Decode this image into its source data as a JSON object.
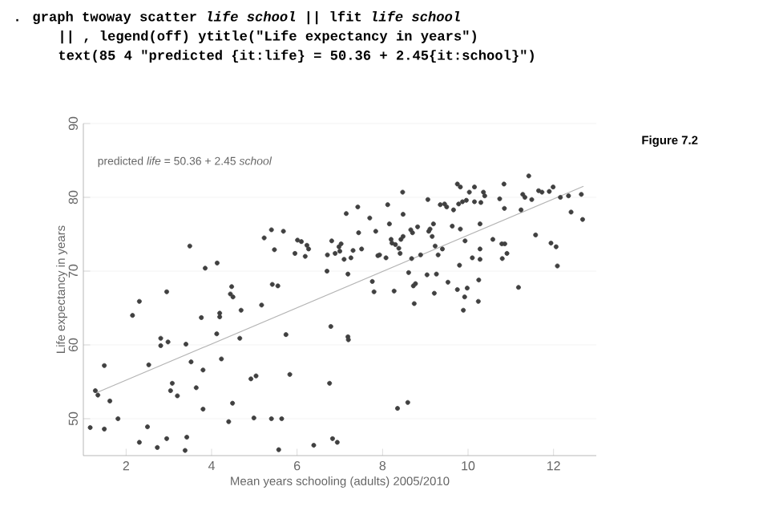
{
  "chart_data": {
    "type": "scatter",
    "xlabel": "Mean years schooling (adults) 2005/2010",
    "ylabel": "Life expectancy in years",
    "xlim": [
      1,
      13
    ],
    "xticks": [
      2,
      4,
      6,
      8,
      10,
      12
    ],
    "ylim": [
      45,
      90
    ],
    "yticks": [
      50,
      60,
      70,
      80,
      90
    ],
    "grid": "y",
    "marker": "circle",
    "annotations": [
      ". graph twoway scatter *life school* || lfit *life school*",
      "|| , legend(off) ytitle(\"Life expectancy in years\")",
      "text(85 4 \"predicted {it:life} = 50.36 + 2.45{it:school}\")",
      "predicted *life* = 50.36 + 2.45 *school*",
      "Figure 7.2"
    ],
    "series": [
      {
        "color": "#404040",
        "x": [
          1.16,
          1.28,
          1.34,
          1.49,
          1.49,
          1.62,
          1.81,
          2.15,
          2.31,
          2.31,
          2.5,
          2.53,
          2.73,
          2.81,
          2.81,
          2.95,
          2.95,
          2.98,
          3.04,
          3.08,
          3.2,
          3.38,
          3.4,
          3.42,
          3.49,
          3.52,
          3.64,
          3.76,
          3.8,
          3.8,
          3.85,
          4.12,
          4.13,
          4.19,
          4.19,
          4.23,
          4.4,
          4.44,
          4.47,
          4.49,
          4.5,
          4.66,
          4.69,
          4.92,
          4.99,
          5.04,
          5.17,
          5.23,
          5.4,
          5.4,
          5.42,
          5.47,
          5.55,
          5.57,
          5.64,
          5.68,
          5.74,
          5.83,
          5.95,
          6.01,
          6.1,
          6.19,
          6.23,
          6.27,
          6.39,
          6.7,
          6.71,
          6.76,
          6.79,
          6.81,
          6.83,
          6.89,
          6.94,
          6.98,
          7.0,
          7.03,
          7.1,
          7.15,
          7.19,
          7.19,
          7.2,
          7.26,
          7.31,
          7.42,
          7.44,
          7.51,
          7.7,
          7.76,
          7.8,
          7.84,
          7.89,
          7.93,
          8.08,
          8.12,
          8.16,
          8.2,
          8.22,
          8.27,
          8.3,
          8.35,
          8.38,
          8.41,
          8.43,
          8.47,
          8.48,
          8.48,
          8.59,
          8.61,
          8.66,
          8.68,
          8.7,
          8.72,
          8.74,
          8.77,
          8.82,
          8.89,
          9.04,
          9.06,
          9.08,
          9.11,
          9.16,
          9.19,
          9.21,
          9.23,
          9.26,
          9.3,
          9.35,
          9.4,
          9.45,
          9.5,
          9.53,
          9.63,
          9.66,
          9.75,
          9.75,
          9.78,
          9.8,
          9.82,
          9.82,
          9.87,
          9.89,
          9.92,
          9.93,
          9.96,
          9.98,
          10.03,
          10.1,
          10.15,
          10.15,
          10.24,
          10.25,
          10.28,
          10.28,
          10.28,
          10.3,
          10.36,
          10.39,
          10.58,
          10.74,
          10.79,
          10.8,
          10.84,
          10.85,
          10.86,
          10.91,
          11.18,
          11.24,
          11.28,
          11.33,
          11.42,
          11.49,
          11.58,
          11.65,
          11.73,
          11.9,
          11.94,
          11.99,
          12.06,
          12.09,
          12.16,
          12.35,
          12.41,
          12.65,
          12.68
        ],
        "values": [
          48.8,
          53.8,
          53.2,
          57.2,
          48.6,
          52.4,
          50.0,
          64.0,
          65.9,
          46.8,
          48.9,
          57.3,
          46.1,
          60.9,
          59.9,
          67.2,
          47.3,
          60.4,
          53.8,
          54.8,
          53.1,
          45.7,
          60.1,
          47.5,
          73.4,
          57.7,
          54.2,
          63.7,
          56.6,
          51.3,
          70.4,
          61.5,
          71.1,
          64.3,
          63.8,
          58.1,
          49.6,
          66.9,
          67.9,
          52.1,
          66.5,
          60.9,
          64.7,
          55.4,
          50.1,
          55.8,
          65.4,
          74.5,
          75.6,
          50.0,
          68.2,
          72.9,
          68.0,
          45.8,
          50.0,
          75.4,
          61.4,
          56.0,
          72.4,
          74.2,
          74.0,
          72.0,
          73.5,
          73.0,
          46.4,
          70.0,
          72.2,
          54.8,
          62.5,
          74.1,
          47.3,
          72.4,
          46.8,
          73.3,
          72.7,
          73.7,
          71.6,
          77.8,
          69.6,
          61.1,
          60.7,
          71.8,
          72.8,
          78.7,
          75.2,
          73.0,
          77.2,
          68.6,
          67.2,
          75.4,
          72.1,
          72.2,
          71.8,
          79.0,
          76.4,
          74.3,
          73.8,
          67.3,
          73.6,
          51.4,
          73.1,
          72.4,
          74.3,
          80.7,
          77.7,
          74.7,
          52.2,
          69.8,
          75.6,
          71.7,
          75.2,
          68.0,
          65.6,
          68.3,
          76.0,
          72.2,
          69.5,
          79.7,
          75.4,
          75.7,
          74.7,
          76.4,
          67.0,
          73.4,
          69.6,
          72.2,
          79.0,
          73.0,
          79.1,
          78.7,
          68.5,
          76.1,
          78.3,
          67.5,
          81.8,
          79.1,
          70.8,
          81.4,
          75.7,
          79.4,
          64.7,
          66.5,
          74.1,
          79.6,
          67.7,
          80.7,
          71.8,
          81.4,
          79.4,
          65.9,
          68.8,
          71.6,
          73.0,
          76.4,
          79.3,
          80.7,
          80.2,
          74.3,
          79.8,
          73.7,
          71.7,
          81.8,
          78.5,
          73.7,
          72.4,
          67.8,
          78.3,
          80.4,
          80.0,
          82.9,
          79.7,
          74.9,
          80.9,
          80.7,
          80.8,
          73.8,
          81.4,
          73.3,
          70.7,
          80.0,
          80.2,
          78.0,
          80.4,
          77.0
        ]
      },
      {
        "type": "line",
        "color": "#b4b4b4",
        "marker": "none",
        "x": [
          1.3,
          12.7
        ],
        "values": [
          53.5,
          81.5
        ]
      }
    ]
  }
}
